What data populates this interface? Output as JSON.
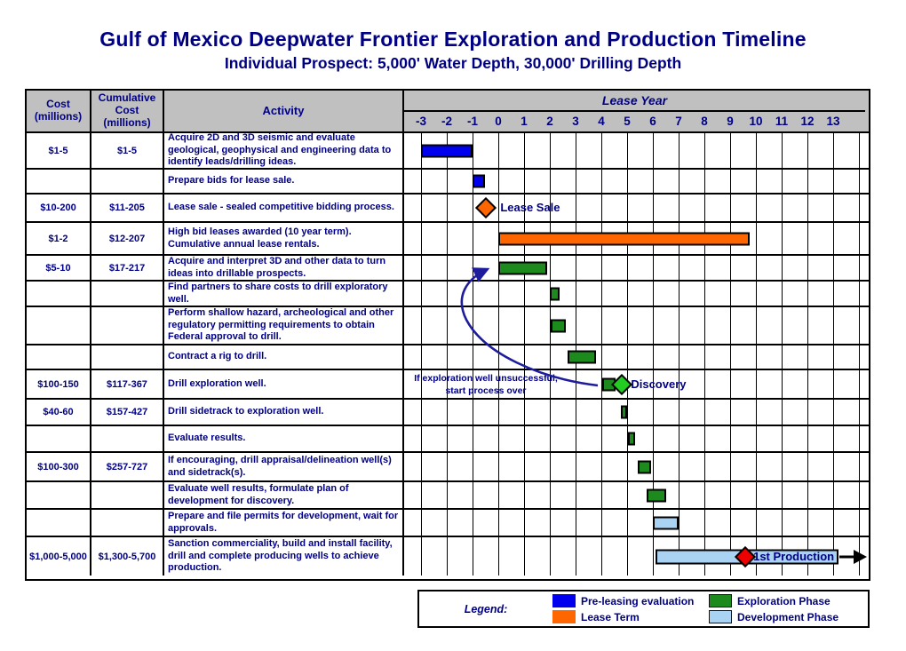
{
  "title": "Gulf of Mexico Deepwater Frontier Exploration and Production Timeline",
  "subtitle": "Individual Prospect: 5,000' Water Depth, 30,000' Drilling Depth",
  "header": {
    "cost": "Cost\n(millions)",
    "cumulative": "Cumulative\nCost\n(millions)",
    "activity": "Activity",
    "lease_year": "Lease Year",
    "years": [
      "-3",
      "-2",
      "-1",
      "0",
      "1",
      "2",
      "3",
      "4",
      "5",
      "6",
      "7",
      "8",
      "9",
      "10",
      "11",
      "12",
      "13"
    ]
  },
  "colors": {
    "navy_text": "#000082",
    "pre_leasing_blue": "#0000ee",
    "lease_term_orange": "#ff6600",
    "exploration_green": "#1d8a1d",
    "development_blue": "#a9d2f3",
    "milestone_green": "#22cc22",
    "production_red": "#ee0000",
    "header_gray": "#c0c0c0",
    "curve_arrow_navy": "#1c1c9c"
  },
  "chart_data": {
    "type": "gantt",
    "title": "Gulf of Mexico Deepwater Frontier Exploration and Production Timeline",
    "x_axis": {
      "label": "Lease Year",
      "min": -3,
      "max": 13,
      "tick_step": 1
    },
    "tasks": [
      {
        "cost": "$1-5",
        "cumulative": "$1-5",
        "activity": "Acquire 2D and 3D seismic and evaluate geological, geophysical and engineering data to identify leads/drilling ideas.",
        "phase": "pre_leasing",
        "start": -3,
        "end": -1
      },
      {
        "cost": "",
        "cumulative": "",
        "activity": "Prepare bids for lease sale.",
        "phase": "pre_leasing",
        "start": -1,
        "end": -0.52
      },
      {
        "cost": "$10-200",
        "cumulative": "$11-205",
        "activity": "Lease sale - sealed competitive bidding process.",
        "milestone": {
          "at": -0.48,
          "label": "Lease Sale",
          "color_key": "lease_term_orange",
          "label_at": 0.08
        }
      },
      {
        "cost": "$1-2",
        "cumulative": "$12-207",
        "activity": "High bid leases awarded (10 year term). Cumulative annual lease rentals.",
        "phase": "lease_term",
        "start": 0,
        "end": 9.75
      },
      {
        "cost": "$5-10",
        "cumulative": "$17-217",
        "activity": "Acquire and interpret 3D and other data to turn ideas into drillable prospects.",
        "phase": "exploration",
        "start": 0,
        "end": 1.9
      },
      {
        "cost": "",
        "cumulative": "",
        "activity": "Find partners to share costs to drill exploratory well.",
        "phase": "exploration",
        "start": 2,
        "end": 2.38
      },
      {
        "cost": "",
        "cumulative": "",
        "activity": "Perform shallow hazard, archeological and other regulatory permitting requirements to obtain Federal approval to drill.",
        "phase": "exploration",
        "start": 2.05,
        "end": 2.62
      },
      {
        "cost": "",
        "cumulative": "",
        "activity": "Contract a rig to drill.",
        "phase": "exploration",
        "start": 2.7,
        "end": 3.8
      },
      {
        "cost": "$100-150",
        "cumulative": "$117-367",
        "activity": "Drill exploration well.",
        "phase": "exploration",
        "start": 4.05,
        "end": 4.55,
        "milestone": {
          "at": 4.8,
          "label": "Discovery",
          "color_key": "milestone_green",
          "label_at": 5.15
        },
        "note": {
          "lines": [
            "If exploration well unsuccessful,",
            "start process over"
          ]
        }
      },
      {
        "cost": "$40-60",
        "cumulative": "$157-427",
        "activity": "Drill sidetrack to exploration well.",
        "phase": "exploration",
        "start": 4.75,
        "end": 5.0
      },
      {
        "cost": "",
        "cumulative": "",
        "activity": "Evaluate results.",
        "phase": "exploration",
        "start": 5.05,
        "end": 5.32
      },
      {
        "cost": "$100-300",
        "cumulative": "$257-727",
        "activity": "If encouraging, drill appraisal/delineation well(s) and sidetrack(s).",
        "phase": "exploration",
        "start": 5.4,
        "end": 5.92
      },
      {
        "cost": "",
        "cumulative": "",
        "activity": "Evaluate well results, formulate plan of development for discovery.",
        "phase": "exploration",
        "start": 5.75,
        "end": 6.5
      },
      {
        "cost": "",
        "cumulative": "",
        "activity": "Prepare and file permits for development, wait for approvals.",
        "phase": "development",
        "start": 6,
        "end": 7
      },
      {
        "cost": "$1,000-5,000",
        "cumulative": "$1,300-5,700",
        "activity": "Sanction commerciality, build and install facility, drill and complete producing wells to achieve production.",
        "phase": "development",
        "start": 6.1,
        "end": 13.2,
        "milestone": {
          "at": 9.6,
          "label": "1st Production",
          "color_key": "production_red",
          "label_at": 9.9
        },
        "continues_arrow": true
      }
    ]
  },
  "legend": {
    "label": "Legend:",
    "items": [
      {
        "label": "Pre-leasing evaluation",
        "color_key": "pre_leasing_blue",
        "col": 1
      },
      {
        "label": "Lease Term",
        "color_key": "lease_term_orange",
        "col": 1
      },
      {
        "label": "Exploration Phase",
        "color_key": "exploration_green",
        "col": 2
      },
      {
        "label": "Development Phase",
        "color_key": "development_blue",
        "col": 2
      }
    ]
  }
}
